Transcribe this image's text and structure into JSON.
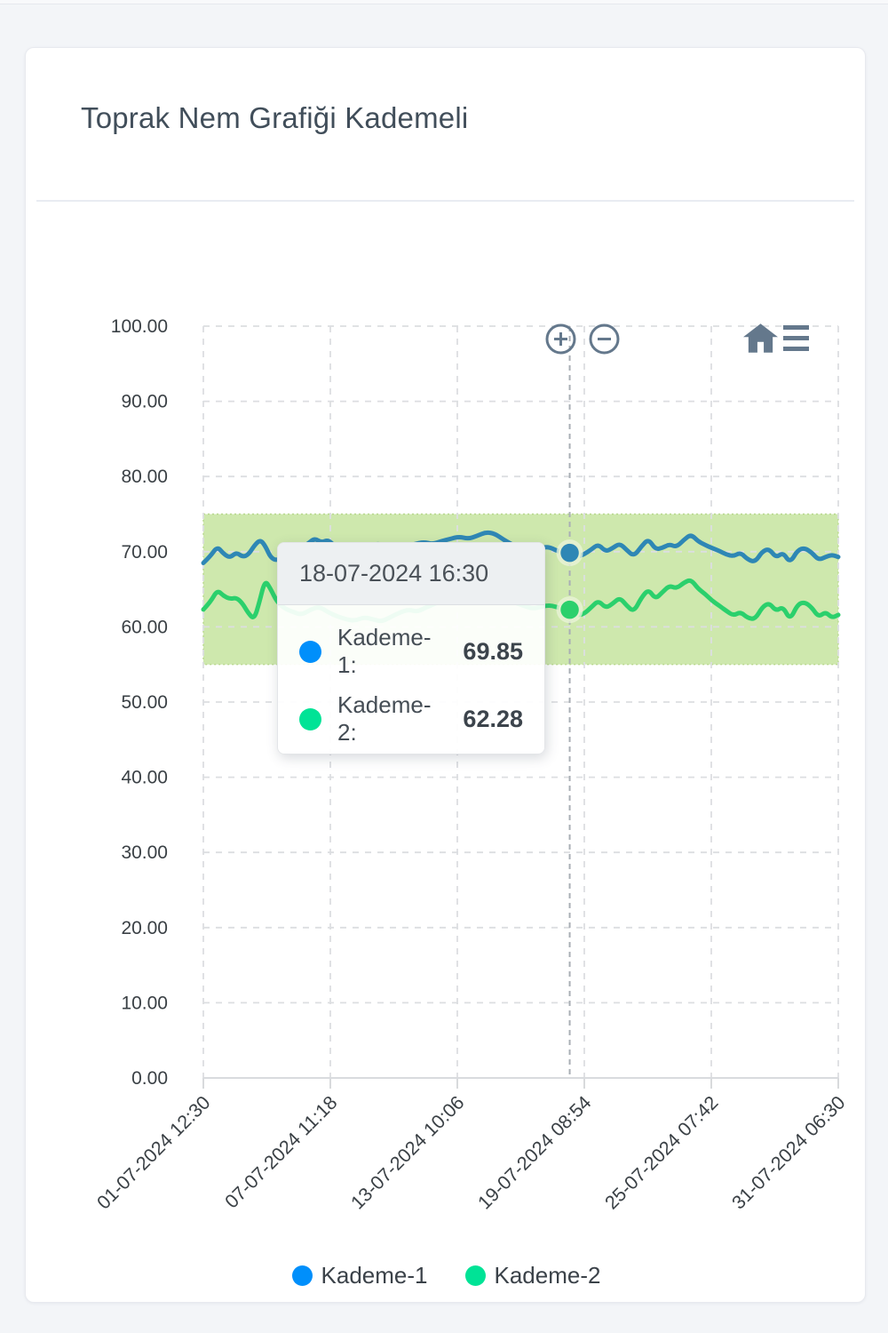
{
  "page": {
    "background": "#f3f5f8"
  },
  "card": {
    "title": "Toprak Nem Grafiği Kademeli"
  },
  "toolbar": {
    "icon_color": "#64788c",
    "icons": [
      {
        "name": "zoom-in"
      },
      {
        "name": "zoom-out"
      },
      {
        "name": "home"
      },
      {
        "name": "menu"
      }
    ]
  },
  "tooltip": {
    "date": "18-07-2024 16:30",
    "rows": [
      {
        "label": "Kademe-1:",
        "value": "69.85",
        "dot_color": "#008FFB"
      },
      {
        "label": "Kademe-2:",
        "value": "62.28",
        "dot_color": "#00E396"
      }
    ]
  },
  "legend": {
    "items": [
      {
        "label": "Kademe-1",
        "color": "#008FFB"
      },
      {
        "label": "Kademe-2",
        "color": "#00E396"
      }
    ]
  },
  "chart_data": {
    "type": "line",
    "title": "Toprak Nem Grafiği Kademeli",
    "xlabel": "",
    "ylabel": "",
    "ylim": [
      0,
      100
    ],
    "grid": true,
    "legend_position": "bottom",
    "y_ticks": [
      "100.00",
      "90.00",
      "80.00",
      "70.00",
      "60.00",
      "50.00",
      "40.00",
      "30.00",
      "20.00",
      "10.00",
      "0.00"
    ],
    "y_tick_values": [
      100,
      90,
      80,
      70,
      60,
      50,
      40,
      30,
      20,
      10,
      0
    ],
    "x_ticks": [
      "01-07-2024 12:30",
      "07-07-2024 11:18",
      "13-07-2024 10:06",
      "19-07-2024 08:54",
      "25-07-2024 07:42",
      "31-07-2024 06:30"
    ],
    "band": {
      "from": 55,
      "to": 75,
      "fill": "#cee8ad",
      "border": "#b7d78c"
    },
    "crosshair": {
      "x_frac": 0.577,
      "color": "#a9afb5"
    },
    "highlight": {
      "x_frac": 0.577,
      "label": "18-07-2024 16:30",
      "points": [
        {
          "series": "Kademe-1",
          "value": 69.85
        },
        {
          "series": "Kademe-2",
          "value": 62.28
        }
      ]
    },
    "series": [
      {
        "name": "Kademe-1",
        "legend_color": "#008FFB",
        "line_color": "#2e87b5",
        "points": [
          [
            0,
            68.5
          ],
          [
            0.011,
            69.4
          ],
          [
            0.022,
            70.7
          ],
          [
            0.032,
            69.7
          ],
          [
            0.042,
            69.2
          ],
          [
            0.052,
            69.9
          ],
          [
            0.062,
            69.3
          ],
          [
            0.071,
            69.6
          ],
          [
            0.081,
            70.9
          ],
          [
            0.09,
            71.6
          ],
          [
            0.098,
            70.7
          ],
          [
            0.106,
            69.2
          ],
          [
            0.116,
            68.8
          ],
          [
            0.129,
            69.6
          ],
          [
            0.141,
            70.9
          ],
          [
            0.152,
            70.5
          ],
          [
            0.164,
            71.0
          ],
          [
            0.175,
            71.8
          ],
          [
            0.186,
            71.2
          ],
          [
            0.197,
            71.6
          ],
          [
            0.208,
            70.6
          ],
          [
            0.221,
            70.0
          ],
          [
            0.235,
            70.4
          ],
          [
            0.249,
            70.1
          ],
          [
            0.263,
            70.8
          ],
          [
            0.277,
            71.1
          ],
          [
            0.291,
            70.5
          ],
          [
            0.305,
            70.3
          ],
          [
            0.319,
            70.7
          ],
          [
            0.333,
            71.0
          ],
          [
            0.347,
            71.3
          ],
          [
            0.361,
            71.0
          ],
          [
            0.375,
            71.4
          ],
          [
            0.389,
            71.7
          ],
          [
            0.403,
            72.0
          ],
          [
            0.417,
            71.7
          ],
          [
            0.431,
            72.1
          ],
          [
            0.445,
            72.6
          ],
          [
            0.459,
            72.4
          ],
          [
            0.473,
            71.6
          ],
          [
            0.487,
            70.9
          ],
          [
            0.501,
            70.4
          ],
          [
            0.515,
            70.1
          ],
          [
            0.529,
            70.4
          ],
          [
            0.543,
            70.7
          ],
          [
            0.557,
            70.1
          ],
          [
            0.568,
            69.9
          ],
          [
            0.577,
            69.85
          ],
          [
            0.587,
            69.3
          ],
          [
            0.599,
            69.6
          ],
          [
            0.611,
            70.3
          ],
          [
            0.622,
            71.0
          ],
          [
            0.634,
            70.0
          ],
          [
            0.645,
            70.5
          ],
          [
            0.656,
            71.1
          ],
          [
            0.667,
            70.2
          ],
          [
            0.678,
            69.4
          ],
          [
            0.69,
            70.7
          ],
          [
            0.701,
            71.7
          ],
          [
            0.712,
            70.3
          ],
          [
            0.723,
            70.5
          ],
          [
            0.734,
            71.0
          ],
          [
            0.745,
            70.6
          ],
          [
            0.757,
            71.6
          ],
          [
            0.768,
            72.3
          ],
          [
            0.779,
            71.4
          ],
          [
            0.79,
            70.9
          ],
          [
            0.801,
            70.5
          ],
          [
            0.813,
            70.1
          ],
          [
            0.824,
            69.6
          ],
          [
            0.835,
            69.4
          ],
          [
            0.846,
            69.9
          ],
          [
            0.857,
            69.0
          ],
          [
            0.869,
            68.6
          ],
          [
            0.88,
            70.0
          ],
          [
            0.891,
            70.4
          ],
          [
            0.902,
            69.2
          ],
          [
            0.913,
            69.9
          ],
          [
            0.924,
            68.5
          ],
          [
            0.936,
            70.2
          ],
          [
            0.947,
            70.5
          ],
          [
            0.958,
            69.9
          ],
          [
            0.969,
            68.9
          ],
          [
            0.98,
            69.3
          ],
          [
            0.99,
            69.6
          ],
          [
            1,
            69.3
          ]
        ]
      },
      {
        "name": "Kademe-2",
        "legend_color": "#00E396",
        "line_color": "#2bd06c",
        "points": [
          [
            0,
            62.3
          ],
          [
            0.011,
            63.3
          ],
          [
            0.022,
            64.9
          ],
          [
            0.032,
            64.1
          ],
          [
            0.042,
            63.7
          ],
          [
            0.052,
            63.9
          ],
          [
            0.062,
            63.1
          ],
          [
            0.071,
            61.8
          ],
          [
            0.08,
            61.0
          ],
          [
            0.088,
            63.2
          ],
          [
            0.097,
            66.2
          ],
          [
            0.105,
            65.2
          ],
          [
            0.116,
            63.3
          ],
          [
            0.129,
            62.4
          ],
          [
            0.141,
            62.0
          ],
          [
            0.155,
            61.6
          ],
          [
            0.169,
            62.3
          ],
          [
            0.183,
            62.7
          ],
          [
            0.197,
            61.9
          ],
          [
            0.211,
            61.4
          ],
          [
            0.225,
            61.0
          ],
          [
            0.239,
            60.8
          ],
          [
            0.253,
            61.3
          ],
          [
            0.267,
            61.0
          ],
          [
            0.281,
            60.7
          ],
          [
            0.295,
            61.3
          ],
          [
            0.309,
            61.9
          ],
          [
            0.323,
            62.3
          ],
          [
            0.337,
            62.0
          ],
          [
            0.351,
            62.6
          ],
          [
            0.365,
            63.1
          ],
          [
            0.379,
            63.6
          ],
          [
            0.393,
            64.1
          ],
          [
            0.407,
            64.6
          ],
          [
            0.421,
            64.2
          ],
          [
            0.435,
            64.9
          ],
          [
            0.449,
            65.3
          ],
          [
            0.463,
            64.5
          ],
          [
            0.477,
            63.8
          ],
          [
            0.491,
            63.2
          ],
          [
            0.505,
            62.8
          ],
          [
            0.519,
            62.4
          ],
          [
            0.533,
            62.7
          ],
          [
            0.547,
            62.9
          ],
          [
            0.561,
            62.5
          ],
          [
            0.577,
            62.28
          ],
          [
            0.587,
            61.5
          ],
          [
            0.599,
            61.7
          ],
          [
            0.611,
            62.6
          ],
          [
            0.622,
            63.5
          ],
          [
            0.634,
            62.5
          ],
          [
            0.645,
            63.1
          ],
          [
            0.656,
            63.9
          ],
          [
            0.667,
            62.8
          ],
          [
            0.678,
            62.0
          ],
          [
            0.69,
            63.9
          ],
          [
            0.701,
            65.0
          ],
          [
            0.712,
            63.7
          ],
          [
            0.723,
            64.6
          ],
          [
            0.734,
            65.5
          ],
          [
            0.745,
            65.1
          ],
          [
            0.757,
            65.9
          ],
          [
            0.768,
            66.3
          ],
          [
            0.779,
            65.1
          ],
          [
            0.79,
            64.4
          ],
          [
            0.801,
            63.5
          ],
          [
            0.813,
            62.8
          ],
          [
            0.824,
            62.1
          ],
          [
            0.835,
            61.5
          ],
          [
            0.846,
            62.0
          ],
          [
            0.857,
            61.2
          ],
          [
            0.869,
            61.0
          ],
          [
            0.88,
            62.6
          ],
          [
            0.891,
            63.2
          ],
          [
            0.902,
            62.1
          ],
          [
            0.913,
            62.7
          ],
          [
            0.924,
            60.9
          ],
          [
            0.936,
            63.0
          ],
          [
            0.947,
            63.3
          ],
          [
            0.958,
            62.6
          ],
          [
            0.969,
            61.3
          ],
          [
            0.98,
            62.0
          ],
          [
            0.99,
            61.2
          ],
          [
            1,
            61.6
          ]
        ]
      }
    ]
  }
}
